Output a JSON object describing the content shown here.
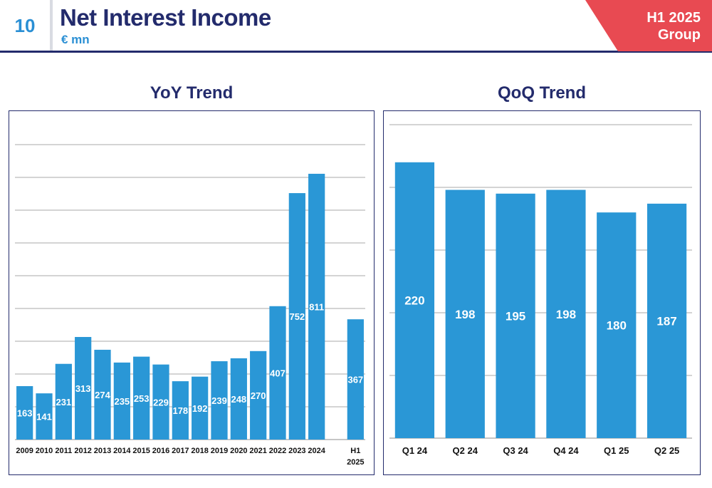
{
  "header": {
    "page_number": "10",
    "title": "Net Interest Income",
    "subtitle": "€ mn",
    "tag_line1": "H1 2025",
    "tag_line2": "Group"
  },
  "colors": {
    "bar": "#2a97d6",
    "navy": "#232b6c",
    "tag": "#e84a52",
    "grid": "#8c8c8c"
  },
  "chart_data": [
    {
      "type": "bar",
      "title": "YoY Trend",
      "categories": [
        "2009",
        "2010",
        "2011",
        "2012",
        "2013",
        "2014",
        "2015",
        "2016",
        "2017",
        "2018",
        "2019",
        "2020",
        "2021",
        "2022",
        "2023",
        "2024",
        "",
        "H1 2025"
      ],
      "values": [
        163,
        141,
        231,
        313,
        274,
        235,
        253,
        229,
        178,
        192,
        239,
        248,
        270,
        407,
        752,
        811,
        null,
        367
      ],
      "ylim": [
        0,
        900
      ],
      "grid": true,
      "axis_labels_shown": false
    },
    {
      "type": "bar",
      "title": "QoQ Trend",
      "categories": [
        "Q1 24",
        "Q2 24",
        "Q3 24",
        "Q4 24",
        "Q1 25",
        "Q2 25"
      ],
      "values": [
        220,
        198,
        195,
        198,
        180,
        187
      ],
      "ylim": [
        0,
        250
      ],
      "grid": true,
      "axis_labels_shown": false
    }
  ]
}
